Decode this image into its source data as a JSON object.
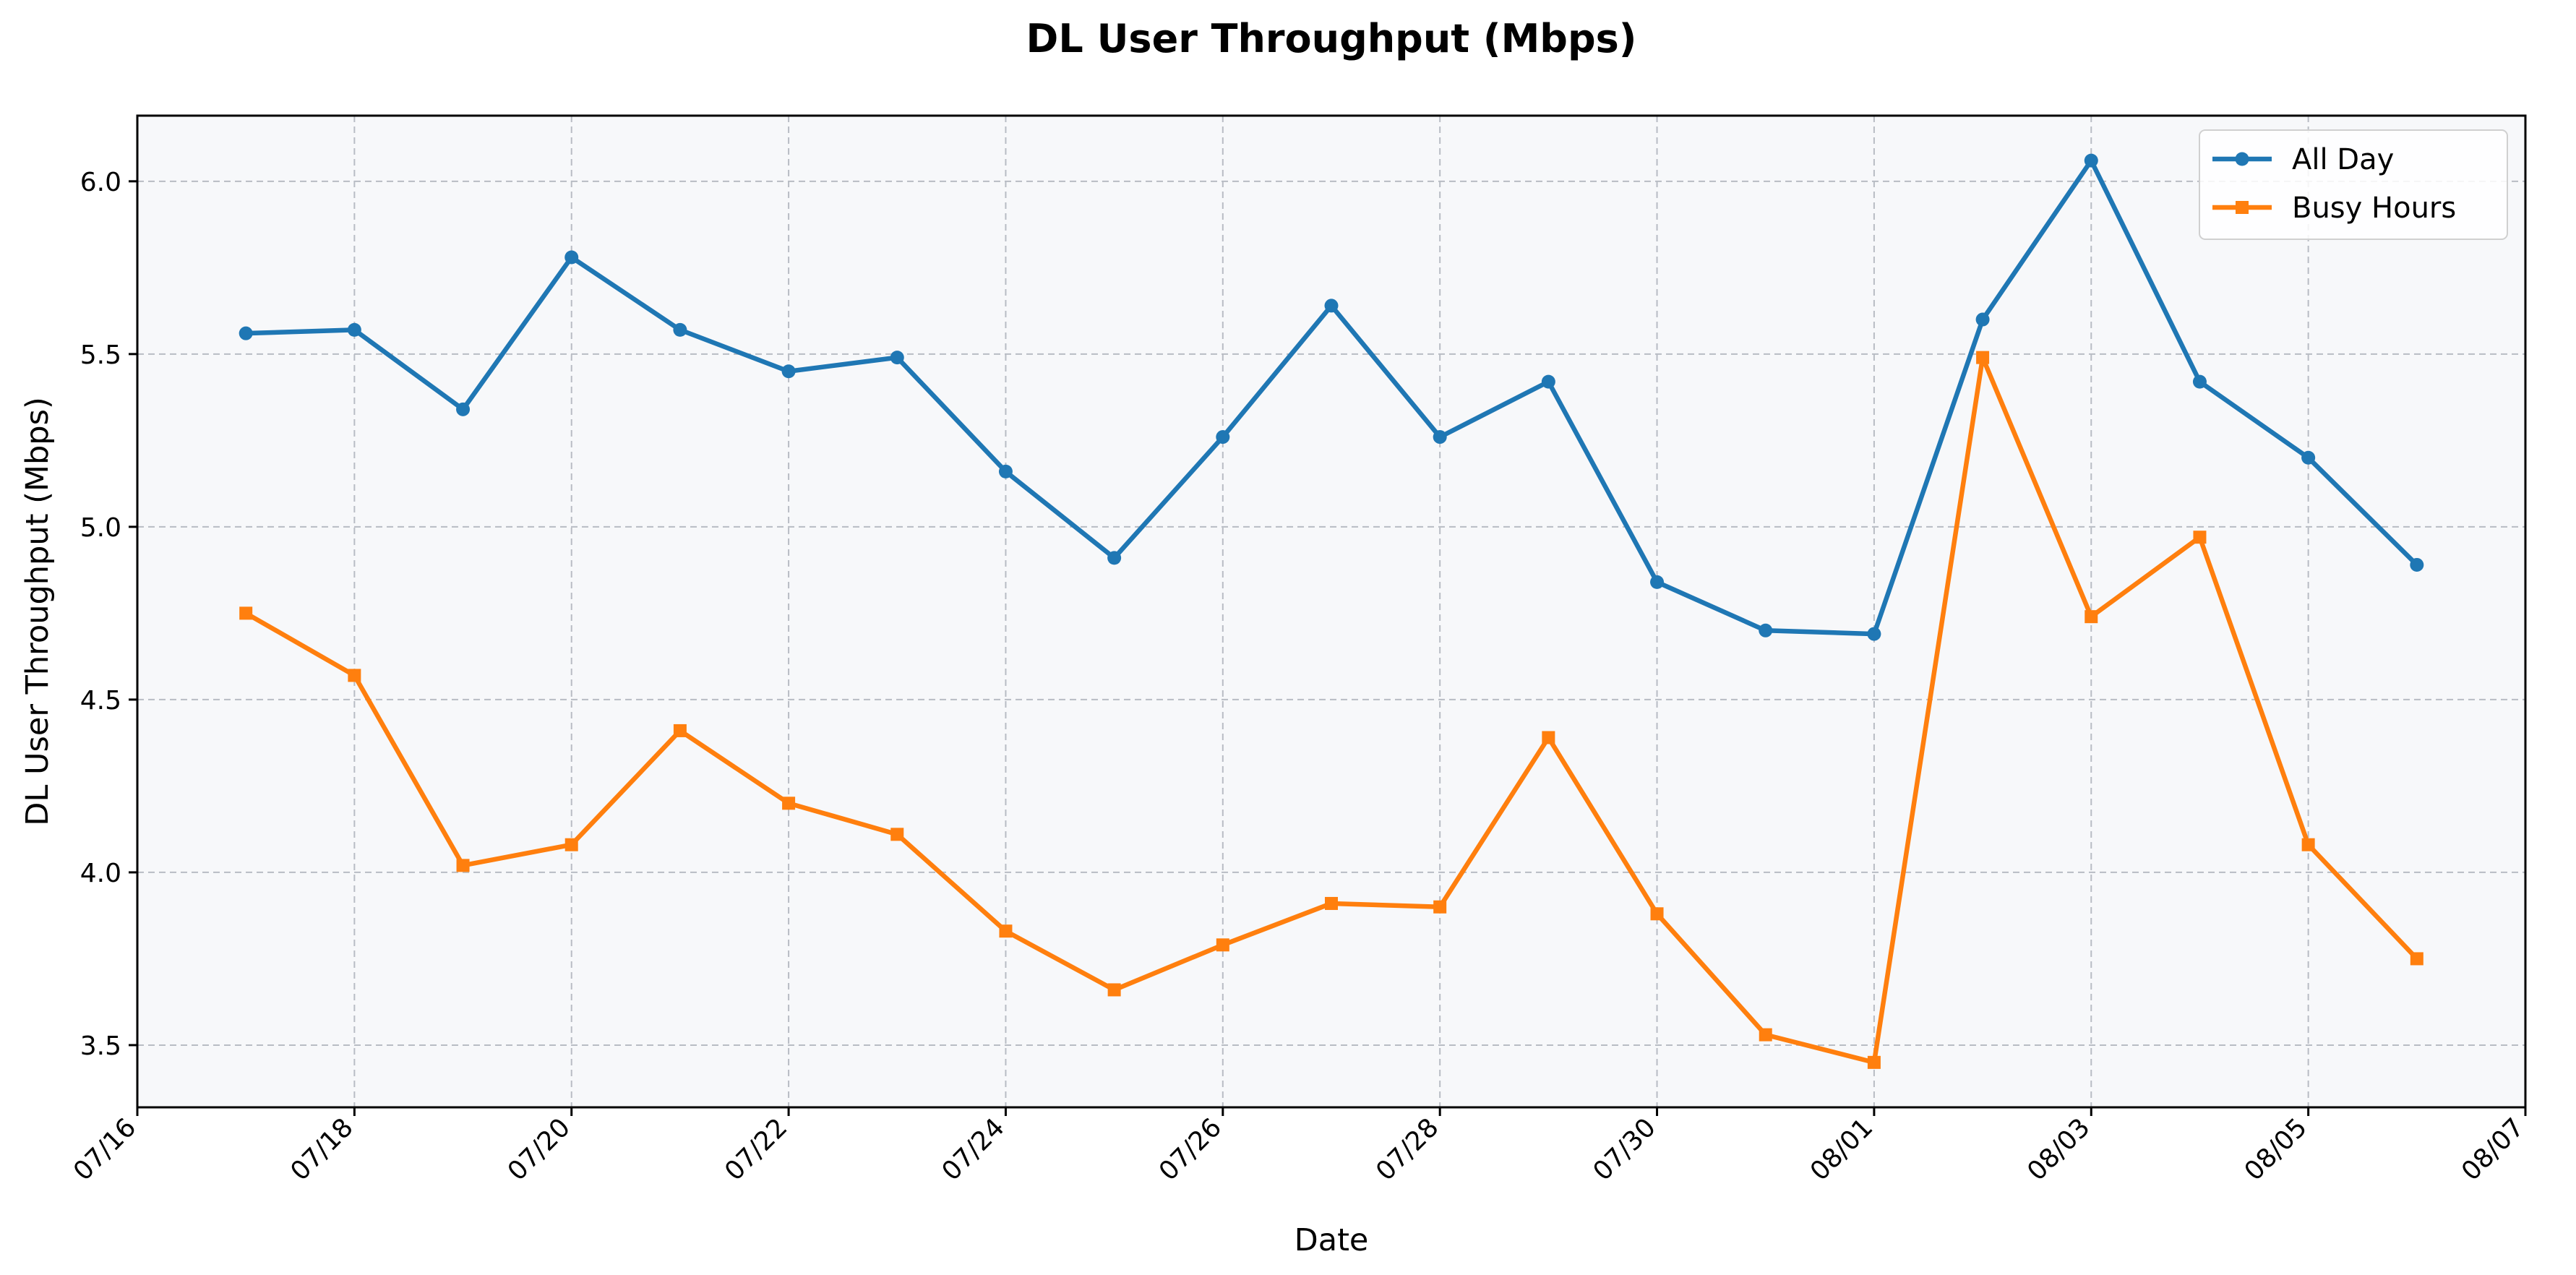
{
  "chart_data": {
    "type": "line",
    "title": "DL User Throughput (Mbps)",
    "xlabel": "Date",
    "ylabel": "DL User Throughput (Mbps)",
    "x_ticks": [
      "07/16",
      "07/18",
      "07/20",
      "07/22",
      "07/24",
      "07/26",
      "07/28",
      "07/30",
      "08/01",
      "08/03",
      "08/05",
      "08/07"
    ],
    "y_ticks": [
      "3.5",
      "4.0",
      "4.5",
      "5.0",
      "5.5",
      "6.0"
    ],
    "xlim": [
      "07/16",
      "08/07"
    ],
    "ylim": [
      3.32,
      6.19
    ],
    "grid": true,
    "legend_position": "top-right",
    "x": [
      "07/17",
      "07/18",
      "07/19",
      "07/20",
      "07/21",
      "07/22",
      "07/23",
      "07/24",
      "07/25",
      "07/26",
      "07/27",
      "07/28",
      "07/29",
      "07/30",
      "07/31",
      "08/01",
      "08/02",
      "08/03",
      "08/04",
      "08/05",
      "08/06"
    ],
    "series": [
      {
        "name": "All Day",
        "color": "#1f77b4",
        "marker": "circle",
        "values": [
          5.56,
          5.57,
          5.34,
          5.78,
          5.57,
          5.45,
          5.49,
          5.16,
          4.91,
          5.26,
          5.64,
          5.26,
          5.42,
          4.84,
          4.7,
          4.69,
          5.6,
          6.06,
          5.42,
          5.2,
          4.89
        ]
      },
      {
        "name": "Busy Hours",
        "color": "#ff7f0e",
        "marker": "square",
        "values": [
          4.75,
          4.57,
          4.02,
          4.08,
          4.41,
          4.2,
          4.11,
          3.83,
          3.66,
          3.79,
          3.91,
          3.9,
          4.39,
          3.88,
          3.53,
          3.45,
          5.49,
          4.74,
          4.97,
          4.08,
          3.75
        ]
      }
    ]
  }
}
